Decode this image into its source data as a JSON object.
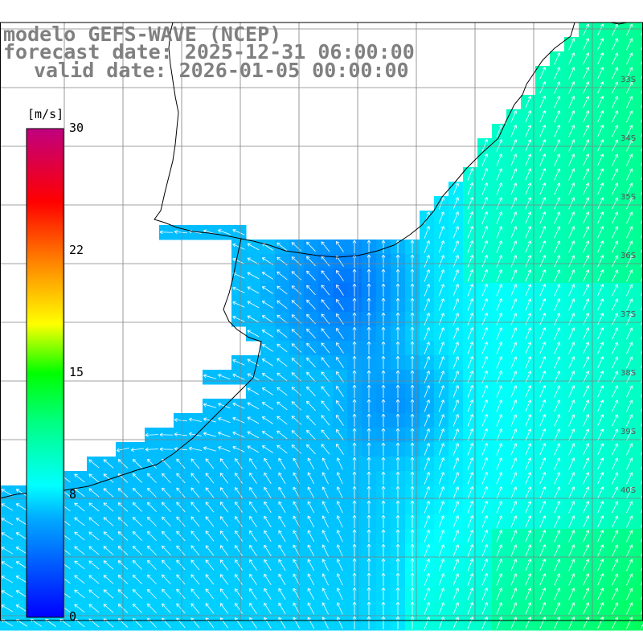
{
  "title": {
    "line1": "modelo GEFS-WAVE (NCEP)",
    "line2": "forecast date: 2025-12-31 06:00:00",
    "line3": "valid date: 2026-01-05 00:00:00"
  },
  "colorbar": {
    "unit": "[m/s]",
    "min": 0,
    "max": 30,
    "ticks": [
      "30",
      "22",
      "15",
      "8",
      "0"
    ],
    "tick_values": [
      30,
      22,
      15,
      8,
      0
    ],
    "colors": [
      "#0000ff",
      "#00a0ff",
      "#00ffff",
      "#00ff00",
      "#ffff00",
      "#ff8000",
      "#ff0000",
      "#c00080"
    ]
  },
  "map": {
    "lat_labels": [
      "33S",
      "34S",
      "35S",
      "36S",
      "37S",
      "38S",
      "39S",
      "40S"
    ],
    "land_color": "#ffffff",
    "coast_color": "#000000",
    "grid_color": "#808080",
    "arrow_color": "#ffffff"
  }
}
